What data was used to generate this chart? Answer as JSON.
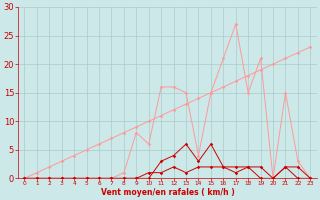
{
  "xlabel": "Vent moyen/en rafales ( km/h )",
  "x_values": [
    0,
    1,
    2,
    3,
    4,
    5,
    6,
    7,
    8,
    9,
    10,
    11,
    12,
    13,
    14,
    15,
    16,
    17,
    18,
    19,
    20,
    21,
    22,
    23
  ],
  "rafales_y": [
    0,
    0,
    0,
    0,
    0,
    0,
    0,
    0,
    1,
    8,
    6,
    16,
    16,
    15,
    4,
    15,
    21,
    27,
    15,
    21,
    0,
    15,
    3,
    0
  ],
  "moyen_y": [
    0,
    0,
    0,
    0,
    0,
    0,
    0,
    0,
    0,
    0,
    0,
    3,
    4,
    6,
    3,
    6,
    2,
    1,
    2,
    0,
    0,
    2,
    0,
    0
  ],
  "linear_y": [
    0,
    1,
    2,
    3,
    4,
    5,
    6,
    7,
    8,
    9,
    10,
    11,
    12,
    13,
    14,
    15,
    16,
    17,
    18,
    19,
    20,
    21,
    22,
    23
  ],
  "base_y": [
    0,
    0,
    0,
    0,
    0,
    0,
    0,
    0,
    0,
    0,
    1,
    1,
    2,
    1,
    2,
    2,
    2,
    2,
    2,
    2,
    0,
    2,
    2,
    0
  ],
  "bg_color": "#cce8e8",
  "grid_color": "#aacccc",
  "rafales_color": "#ff9999",
  "moyen_color": "#cc0000",
  "linear_color": "#ff9999",
  "base_color": "#cc0000",
  "tick_color": "#cc0000",
  "label_color": "#cc0000",
  "ylim": [
    0,
    30
  ],
  "yticks": [
    0,
    5,
    10,
    15,
    20,
    25,
    30
  ]
}
